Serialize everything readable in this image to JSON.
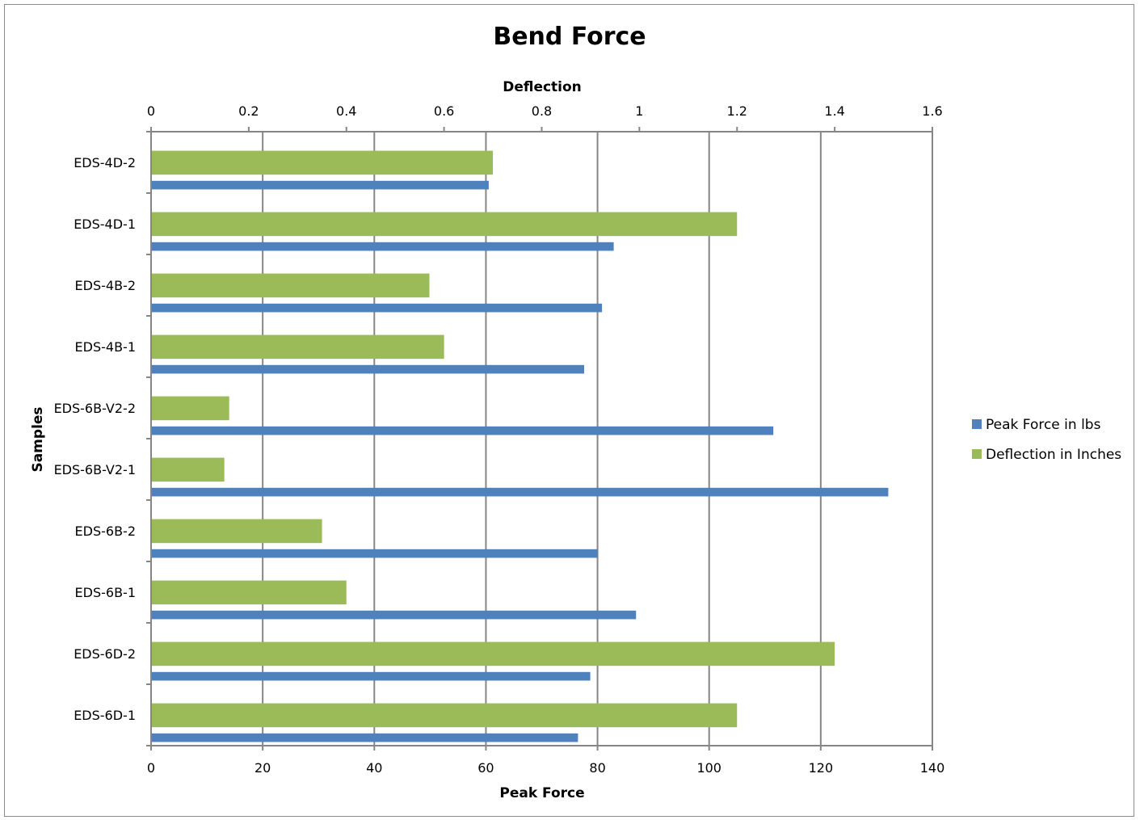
{
  "chart_data": {
    "type": "bar",
    "orientation": "horizontal",
    "title": "Bend Force",
    "xlabel": "Peak Force",
    "x2label": "Deflection",
    "ylabel": "Samples",
    "xlim": [
      0,
      140
    ],
    "x2lim": [
      0,
      1.6
    ],
    "xticks": [
      "0",
      "20",
      "40",
      "60",
      "80",
      "100",
      "120",
      "140"
    ],
    "x2ticks": [
      "0",
      "0.2",
      "0.4",
      "0.6",
      "0.8",
      "1",
      "1.2",
      "1.4",
      "1.6"
    ],
    "grid": true,
    "legend_position": "right",
    "categories": [
      "EDS-6D-1",
      "EDS-6D-2",
      "EDS-6B-1",
      "EDS-6B-2",
      "EDS-6B-V2-1",
      "EDS-6B-V2-2",
      "EDS-4B-1",
      "EDS-4B-2",
      "EDS-4D-1",
      "EDS-4D-2"
    ],
    "series": [
      {
        "name": "Peak Force in lbs",
        "axis": "bottom",
        "color": "#4f81bd",
        "values": [
          76.5,
          78.7,
          86.9,
          80.0,
          132.1,
          111.5,
          77.6,
          80.8,
          82.9,
          60.5
        ]
      },
      {
        "name": "Deflection in Inches",
        "axis": "top",
        "color": "#9bbb59",
        "values": [
          1.2,
          1.4,
          0.4,
          0.35,
          0.15,
          0.16,
          0.6,
          0.57,
          1.2,
          0.7
        ]
      }
    ]
  }
}
